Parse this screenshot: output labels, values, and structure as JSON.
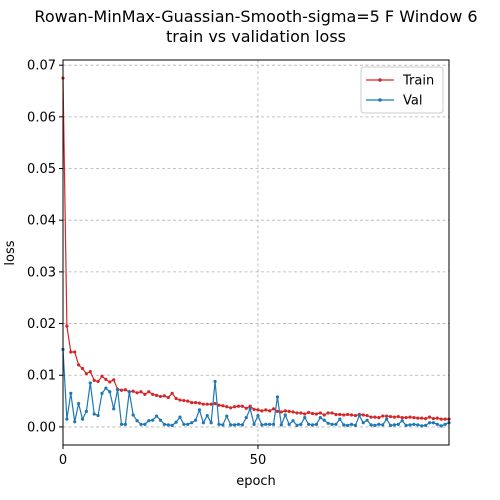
{
  "chart_data": {
    "type": "line",
    "title_line1": "Rowan-MinMax-Guassian-Smooth-sigma=5 F Window 6",
    "title_line2": "train vs validation loss",
    "xlabel": "epoch",
    "ylabel": "loss",
    "xlim": [
      0,
      99
    ],
    "ylim": [
      -0.0035,
      0.071
    ],
    "x_ticks": [
      0,
      50
    ],
    "y_ticks": [
      0.0,
      0.01,
      0.02,
      0.03,
      0.04,
      0.05,
      0.06,
      0.07
    ],
    "y_tick_labels": [
      "0.00",
      "0.01",
      "0.02",
      "0.03",
      "0.04",
      "0.05",
      "0.06",
      "0.07"
    ],
    "grid": true,
    "legend_position": "top-right",
    "series": [
      {
        "name": "Train",
        "color": "#d62728",
        "values": [
          0.0675,
          0.0195,
          0.0145,
          0.0145,
          0.012,
          0.0113,
          0.0103,
          0.0107,
          0.009,
          0.0088,
          0.0098,
          0.0092,
          0.0087,
          0.0091,
          0.0073,
          0.0071,
          0.0072,
          0.0068,
          0.0069,
          0.0066,
          0.0068,
          0.0063,
          0.0068,
          0.0063,
          0.0061,
          0.0059,
          0.006,
          0.0057,
          0.0065,
          0.0055,
          0.0052,
          0.0051,
          0.005,
          0.0047,
          0.0047,
          0.0046,
          0.0044,
          0.0044,
          0.0044,
          0.0045,
          0.0042,
          0.0041,
          0.0039,
          0.0037,
          0.0039,
          0.004,
          0.004,
          0.0036,
          0.004,
          0.0034,
          0.0033,
          0.0031,
          0.0033,
          0.0031,
          0.0035,
          0.003,
          0.0029,
          0.0031,
          0.003,
          0.0029,
          0.0027,
          0.0027,
          0.0025,
          0.0028,
          0.0026,
          0.0025,
          0.0027,
          0.0023,
          0.0027,
          0.0027,
          0.0024,
          0.0024,
          0.0023,
          0.0024,
          0.0023,
          0.0022,
          0.0024,
          0.0023,
          0.0022,
          0.0019,
          0.0019,
          0.0018,
          0.0021,
          0.0021,
          0.002,
          0.0019,
          0.002,
          0.0018,
          0.0018,
          0.0019,
          0.0018,
          0.0017,
          0.0017,
          0.0016,
          0.0019,
          0.0016,
          0.0017,
          0.0015,
          0.0015,
          0.0015
        ]
      },
      {
        "name": "Val",
        "color": "#1f77b4",
        "values": [
          0.015,
          0.0015,
          0.0065,
          0.001,
          0.0045,
          0.0015,
          0.003,
          0.0085,
          0.0025,
          0.0022,
          0.0065,
          0.0075,
          0.0068,
          0.0035,
          0.0072,
          0.0005,
          0.0005,
          0.0068,
          0.0023,
          0.0012,
          0.0005,
          0.0005,
          0.0012,
          0.0013,
          0.0021,
          0.0013,
          0.0005,
          0.0004,
          0.0003,
          0.0009,
          0.0019,
          0.0005,
          0.0005,
          0.0008,
          0.0013,
          0.0033,
          0.0008,
          0.0022,
          0.0008,
          0.0088,
          0.0005,
          0.0004,
          0.0021,
          0.0004,
          0.0004,
          0.0005,
          0.0004,
          0.0018,
          0.0035,
          0.0005,
          0.0022,
          0.0004,
          0.0005,
          0.0005,
          0.0005,
          0.0058,
          0.0004,
          0.0023,
          0.0005,
          0.0012,
          0.0003,
          0.0005,
          0.0018,
          0.0005,
          0.0004,
          0.0005,
          0.0018,
          0.0013,
          0.0007,
          0.0005,
          0.0005,
          0.0015,
          0.0004,
          0.0003,
          0.0005,
          0.0003,
          0.0022,
          0.0008,
          0.0013,
          0.0004,
          0.0003,
          0.0005,
          0.0004,
          0.0015,
          0.0003,
          0.0004,
          0.0005,
          0.0012,
          0.0003,
          0.0004,
          0.0005,
          0.0004,
          0.0002,
          0.0003,
          0.0008,
          0.0008,
          0.0005,
          0.0002,
          0.0005,
          0.0008
        ]
      }
    ]
  }
}
